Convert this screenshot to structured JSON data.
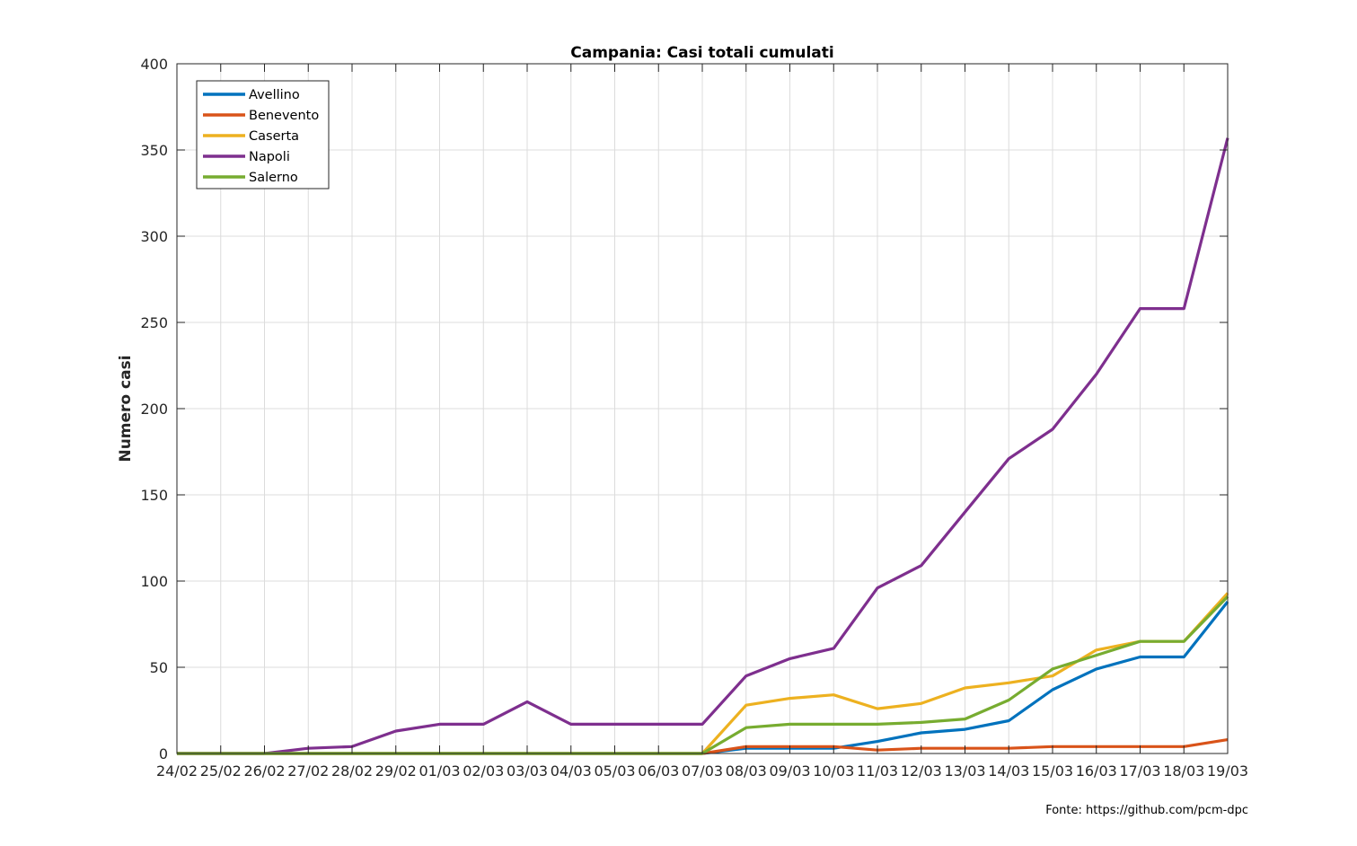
{
  "source_note": "Fonte: https://github.com/pcm-dpc",
  "chart_data": {
    "type": "line",
    "title": "Campania: Casi totali cumulati",
    "xlabel": "",
    "ylabel": "Numero casi",
    "ylim": [
      0,
      400
    ],
    "yticks": [
      0,
      50,
      100,
      150,
      200,
      250,
      300,
      350,
      400
    ],
    "grid": true,
    "legend_position": "top-left",
    "categories": [
      "24/02",
      "25/02",
      "26/02",
      "27/02",
      "28/02",
      "29/02",
      "01/03",
      "02/03",
      "03/03",
      "04/03",
      "05/03",
      "06/03",
      "07/03",
      "08/03",
      "09/03",
      "10/03",
      "11/03",
      "12/03",
      "13/03",
      "14/03",
      "15/03",
      "16/03",
      "17/03",
      "18/03",
      "19/03"
    ],
    "series": [
      {
        "name": "Avellino",
        "color": "#0072BD",
        "values": [
          0,
          0,
          0,
          0,
          0,
          0,
          0,
          0,
          0,
          0,
          0,
          0,
          0,
          3,
          3,
          3,
          7,
          12,
          14,
          19,
          37,
          49,
          56,
          56,
          88
        ]
      },
      {
        "name": "Benevento",
        "color": "#D95319",
        "values": [
          0,
          0,
          0,
          0,
          0,
          0,
          0,
          0,
          0,
          0,
          0,
          0,
          0,
          4,
          4,
          4,
          2,
          3,
          3,
          3,
          4,
          4,
          4,
          4,
          8
        ]
      },
      {
        "name": "Caserta",
        "color": "#EDB120",
        "values": [
          0,
          0,
          0,
          0,
          0,
          0,
          0,
          0,
          0,
          0,
          0,
          0,
          0,
          28,
          32,
          34,
          26,
          29,
          38,
          41,
          45,
          60,
          65,
          65,
          93
        ]
      },
      {
        "name": "Napoli",
        "color": "#7E2F8E",
        "values": [
          0,
          0,
          0,
          3,
          4,
          13,
          17,
          17,
          30,
          17,
          17,
          17,
          17,
          45,
          55,
          61,
          96,
          109,
          140,
          171,
          188,
          220,
          258,
          258,
          357
        ]
      },
      {
        "name": "Salerno",
        "color": "#77AC30",
        "values": [
          0,
          0,
          0,
          0,
          0,
          0,
          0,
          0,
          0,
          0,
          0,
          0,
          0,
          15,
          17,
          17,
          17,
          18,
          20,
          31,
          49,
          57,
          65,
          65,
          91
        ]
      }
    ]
  }
}
